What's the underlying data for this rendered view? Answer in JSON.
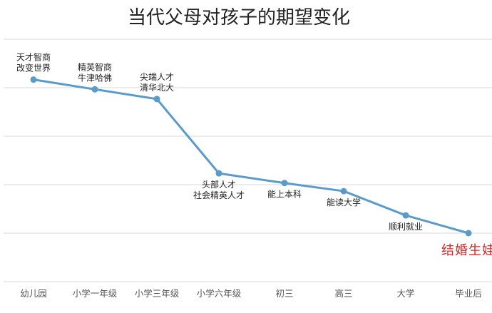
{
  "chart_data": {
    "type": "line",
    "title": "当代父母对孩子的期望变化",
    "xlabel": "",
    "ylabel": "",
    "categories": [
      "幼儿园",
      "小学一年级",
      "小学三年级",
      "小学六年级",
      "初三",
      "高三",
      "大学",
      "毕业后"
    ],
    "values": [
      100,
      94,
      88,
      42,
      36,
      31,
      16,
      5
    ],
    "ylim": [
      -25,
      125
    ],
    "grid": true,
    "legend": "none",
    "line_color": "#5b9bc9",
    "annotations": [
      {
        "category": "幼儿园",
        "lines": [
          "天才智商",
          "改变世界"
        ],
        "position": "above",
        "highlight": false
      },
      {
        "category": "小学一年级",
        "lines": [
          "精英智商",
          "牛津哈佛"
        ],
        "position": "above",
        "highlight": false
      },
      {
        "category": "小学三年级",
        "lines": [
          "尖端人才",
          "清华北大"
        ],
        "position": "above",
        "highlight": false
      },
      {
        "category": "小学六年级",
        "lines": [
          "头部人才",
          "社会精英人才"
        ],
        "position": "below",
        "highlight": false
      },
      {
        "category": "初三",
        "lines": [
          "能上本科"
        ],
        "position": "below",
        "highlight": false
      },
      {
        "category": "高三",
        "lines": [
          "能读大学"
        ],
        "position": "below",
        "highlight": false
      },
      {
        "category": "大学",
        "lines": [
          "顺利就业"
        ],
        "position": "below",
        "highlight": false
      },
      {
        "category": "毕业后",
        "lines": [
          "结婚生娃"
        ],
        "position": "below",
        "highlight": true,
        "color": "#d42a2a"
      }
    ]
  }
}
